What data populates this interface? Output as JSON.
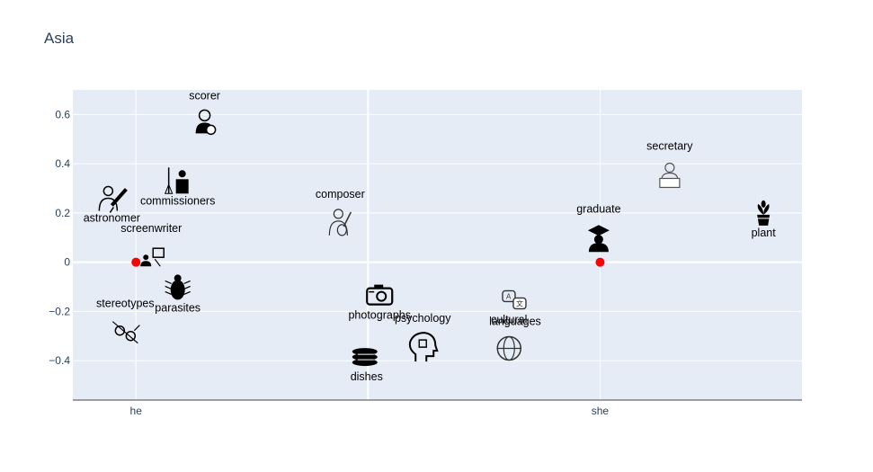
{
  "chart_data": {
    "type": "scatter",
    "title": "Asia",
    "xlabel": "",
    "ylabel": "",
    "xlim": [
      -0.136,
      1.435
    ],
    "ylim": [
      -0.56,
      0.7
    ],
    "x_tick_labels": [
      {
        "value": 0,
        "label": "he"
      },
      {
        "value": 1,
        "label": "she"
      }
    ],
    "y_ticks": [
      -0.4,
      -0.2,
      0,
      0.2,
      0.4,
      0.6
    ],
    "y_tick_labels": [
      "−0.4",
      "−0.2",
      "0",
      "0.2",
      "0.4",
      "0.6"
    ],
    "grid": true,
    "reference_markers": [
      {
        "x": 0,
        "y": 0,
        "color": "#ff0000"
      },
      {
        "x": 1,
        "y": 0,
        "color": "#ff0000"
      }
    ],
    "points": [
      {
        "label": "scorer",
        "x": 0.148,
        "y": 0.56,
        "icon": "soccer-player-icon"
      },
      {
        "label": "commissioners",
        "x": 0.09,
        "y": 0.33,
        "icon": "podium-speaker-icon"
      },
      {
        "label": "astronomer",
        "x": -0.052,
        "y": 0.26,
        "icon": "astronomer-telescope-icon"
      },
      {
        "label": "screenwriter",
        "x": 0.033,
        "y": 0.02,
        "icon": "film-director-icon"
      },
      {
        "label": "parasites",
        "x": 0.09,
        "y": -0.105,
        "icon": "bug-icon"
      },
      {
        "label": "stereotypes",
        "x": -0.023,
        "y": -0.285,
        "icon": "gender-symbols-icon"
      },
      {
        "label": "composer",
        "x": 0.44,
        "y": 0.16,
        "icon": "musician-guitar-icon"
      },
      {
        "label": "photographs",
        "x": 0.525,
        "y": -0.135,
        "icon": "camera-icon"
      },
      {
        "label": "psychology",
        "x": 0.618,
        "y": -0.345,
        "icon": "head-puzzle-icon"
      },
      {
        "label": "dishes",
        "x": 0.497,
        "y": -0.385,
        "icon": "dishes-stack-icon"
      },
      {
        "label": "languages",
        "x": 0.817,
        "y": -0.16,
        "icon": "translate-bubbles-icon"
      },
      {
        "label": "cultural",
        "x": 0.804,
        "y": -0.35,
        "icon": "globe-culture-icon"
      },
      {
        "label": "graduate",
        "x": 0.997,
        "y": 0.1,
        "icon": "graduate-cap-icon"
      },
      {
        "label": "secretary",
        "x": 1.15,
        "y": 0.355,
        "icon": "secretary-laptop-icon"
      },
      {
        "label": "plant",
        "x": 1.352,
        "y": 0.2,
        "icon": "potted-plant-icon"
      }
    ],
    "colors": {
      "plot_bg": "#e5ecf6",
      "grid": "#ffffff",
      "text": "#2a3f5f",
      "marker": "#ff0000"
    }
  }
}
